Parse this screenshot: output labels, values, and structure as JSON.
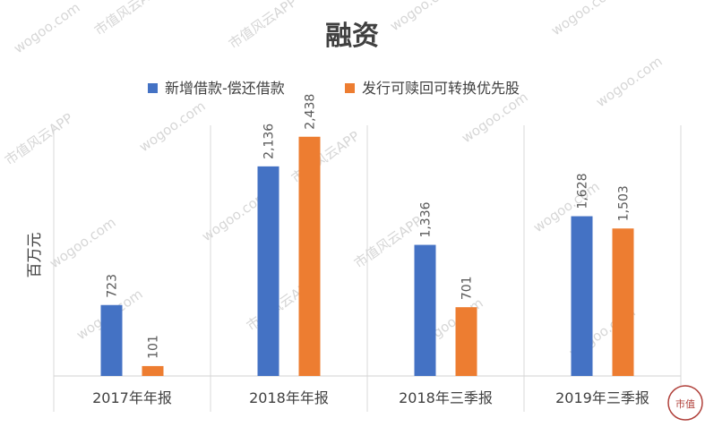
{
  "chart_data": {
    "type": "bar",
    "title": "融资",
    "ylabel": "百万元",
    "categories": [
      "2017年年报",
      "2018年年报",
      "2018年三季报",
      "2019年三季报"
    ],
    "series": [
      {
        "name": "新增借款-偿还借款",
        "values": [
          723,
          2136,
          1336,
          1628
        ],
        "labels": [
          "723",
          "2,136",
          "1,336",
          "1,628"
        ],
        "color": "#4472C4"
      },
      {
        "name": "发行可赎回可转换优先股",
        "values": [
          101,
          2438,
          701,
          1503
        ],
        "labels": [
          "101",
          "2,438",
          "701",
          "1,503"
        ],
        "color": "#ED7D31"
      }
    ],
    "ylim": [
      0,
      2600
    ],
    "grid": false,
    "legend_position": "top"
  },
  "watermark": {
    "lines": [
      "市值风云APP",
      "wogoo.com"
    ],
    "seal": "市值"
  }
}
